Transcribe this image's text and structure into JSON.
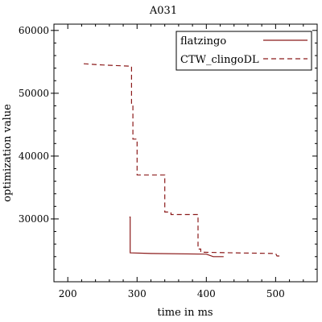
{
  "chart_data": {
    "type": "line",
    "title": "A031",
    "xlabel": "time in ms",
    "ylabel": "optimization value",
    "xlim": [
      180,
      560
    ],
    "ylim": [
      20000,
      61000
    ],
    "x_ticks": [
      200,
      300,
      400,
      500
    ],
    "y_ticks": [
      30000,
      40000,
      50000,
      60000
    ],
    "x_tick_labels": [
      "200",
      "300",
      "400",
      "500"
    ],
    "y_tick_labels": [
      "30000",
      "40000",
      "50000",
      "60000"
    ],
    "grid": false,
    "legend_position": "top-right",
    "series": [
      {
        "name": "flatzingo",
        "style": "solid",
        "color": "#8b1a1a",
        "points": [
          [
            289,
            30300
          ],
          [
            290,
            30300
          ],
          [
            290,
            24600
          ],
          [
            320,
            24500
          ],
          [
            400,
            24400
          ],
          [
            410,
            24000
          ],
          [
            425,
            24000
          ]
        ]
      },
      {
        "name": "CTW_clingoDL",
        "style": "dashed",
        "color": "#8b1a1a",
        "points": [
          [
            223,
            54700
          ],
          [
            250,
            54500
          ],
          [
            292,
            54300
          ],
          [
            292,
            48300
          ],
          [
            294,
            48300
          ],
          [
            294,
            42700
          ],
          [
            300,
            42700
          ],
          [
            300,
            37000
          ],
          [
            340,
            37000
          ],
          [
            340,
            31100
          ],
          [
            349,
            31100
          ],
          [
            349,
            30700
          ],
          [
            388,
            30700
          ],
          [
            388,
            25200
          ],
          [
            392,
            25200
          ],
          [
            392,
            24700
          ],
          [
            440,
            24600
          ],
          [
            500,
            24500
          ],
          [
            502,
            24100
          ],
          [
            510,
            24100
          ]
        ]
      }
    ]
  }
}
